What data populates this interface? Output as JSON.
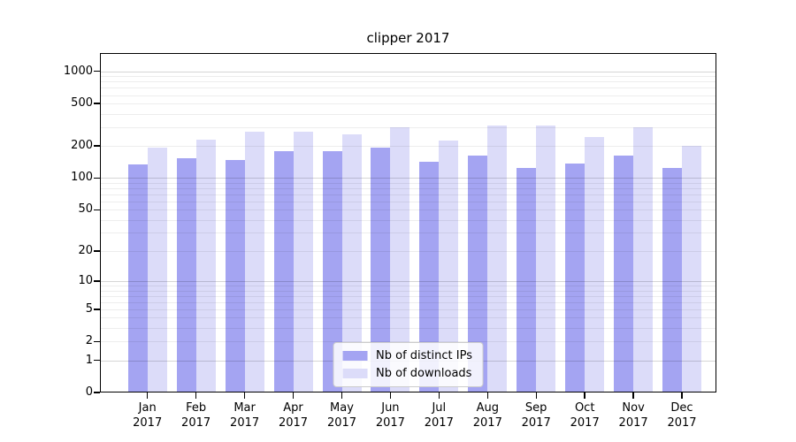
{
  "chart_data": {
    "type": "bar",
    "title": "clipper 2017",
    "categories": [
      "Jan 2017",
      "Feb 2017",
      "Mar 2017",
      "Apr 2017",
      "May 2017",
      "Jun 2017",
      "Jul 2017",
      "Aug 2017",
      "Sep 2017",
      "Oct 2017",
      "Nov 2017",
      "Dec 2017"
    ],
    "series": [
      {
        "name": "Nb of distinct IPs",
        "color": "#a4a4f2",
        "values": [
          135,
          154,
          148,
          180,
          179,
          194,
          142,
          163,
          125,
          137,
          163,
          124
        ]
      },
      {
        "name": "Nb of downloads",
        "color": "#dcdcf9",
        "values": [
          193,
          230,
          271,
          271,
          257,
          302,
          225,
          311,
          311,
          242,
          299,
          200
        ]
      }
    ],
    "yscale": "log1p",
    "yticks": [
      0,
      1,
      2,
      5,
      10,
      20,
      50,
      100,
      200,
      500,
      1000
    ],
    "ylim": [
      0,
      1480
    ],
    "grid": true,
    "legend_position": "lower center",
    "colors": {
      "major_grid": "rgba(0,0,0,0.16)",
      "minor_grid": "rgba(0,0,0,0.07)",
      "axis": "#000000"
    }
  }
}
